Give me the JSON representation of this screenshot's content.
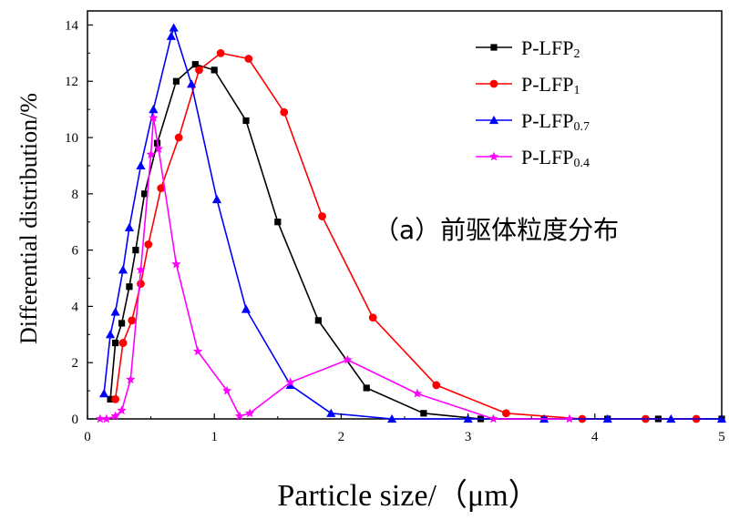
{
  "chart_data": {
    "type": "line",
    "xlabel": "Particle size/（μm）",
    "ylabel": "Differential distribution/%",
    "annotation": "（a）前驱体粒度分布",
    "xlim": [
      0,
      5
    ],
    "ylim": [
      0,
      14.5
    ],
    "xticks": [
      "0",
      "1",
      "2",
      "3",
      "4",
      "5"
    ],
    "yticks": [
      "0",
      "2",
      "4",
      "6",
      "8",
      "10",
      "12",
      "14"
    ],
    "legend_position": "top-right",
    "series": [
      {
        "name": "P-LFP2",
        "name_main": "P-LFP",
        "name_sub": "2",
        "color": "#000000",
        "marker": "square",
        "x": [
          0.18,
          0.22,
          0.27,
          0.33,
          0.38,
          0.45,
          0.55,
          0.7,
          0.85,
          1.0,
          1.25,
          1.5,
          1.82,
          2.2,
          2.65,
          3.1,
          3.6,
          4.1,
          4.5,
          5.0
        ],
        "y": [
          0.7,
          2.7,
          3.4,
          4.7,
          6.0,
          8.0,
          9.8,
          12.0,
          12.6,
          12.4,
          10.6,
          7.0,
          3.5,
          1.1,
          0.2,
          0.0,
          0.0,
          0.0,
          0.0,
          0.0
        ]
      },
      {
        "name": "P-LFP1",
        "name_main": "P-LFP",
        "name_sub": "1",
        "color": "#ff0000",
        "marker": "circle",
        "x": [
          0.22,
          0.28,
          0.35,
          0.42,
          0.48,
          0.58,
          0.72,
          0.88,
          1.05,
          1.27,
          1.55,
          1.85,
          2.25,
          2.75,
          3.3,
          3.9,
          4.4,
          4.8
        ],
        "y": [
          0.7,
          2.7,
          3.5,
          4.8,
          6.2,
          8.2,
          10.0,
          12.4,
          13.0,
          12.8,
          10.9,
          7.2,
          3.6,
          1.2,
          0.2,
          0.0,
          0.0,
          0.0
        ]
      },
      {
        "name": "P-LFP0.7",
        "name_main": "P-LFP",
        "name_sub": "0.7",
        "color": "#0000ff",
        "marker": "triangle",
        "x": [
          0.13,
          0.18,
          0.22,
          0.28,
          0.33,
          0.42,
          0.52,
          0.66,
          0.68,
          0.82,
          1.02,
          1.25,
          1.6,
          1.92,
          2.4,
          3.0,
          3.6,
          4.1,
          4.6,
          5.0
        ],
        "y": [
          0.9,
          3.0,
          3.8,
          5.3,
          6.8,
          9.0,
          11.0,
          13.6,
          13.9,
          11.9,
          7.8,
          3.9,
          1.2,
          0.2,
          0.0,
          0.0,
          0.0,
          0.0,
          0.0,
          0.0
        ],
        "peak_label": "14"
      },
      {
        "name": "P-LFP0.4",
        "name_main": "P-LFP",
        "name_sub": "0.4",
        "color": "#ff00ff",
        "marker": "star",
        "x": [
          0.1,
          0.15,
          0.22,
          0.27,
          0.34,
          0.42,
          0.5,
          0.52,
          0.56,
          0.7,
          0.87,
          1.1,
          1.2,
          1.28,
          1.6,
          2.05,
          2.6,
          3.2,
          3.8
        ],
        "y": [
          0.0,
          0.0,
          0.1,
          0.3,
          1.4,
          5.3,
          9.4,
          10.7,
          9.6,
          5.5,
          2.4,
          1.0,
          0.1,
          0.2,
          1.3,
          2.1,
          0.9,
          0.0,
          0.0
        ]
      }
    ]
  }
}
